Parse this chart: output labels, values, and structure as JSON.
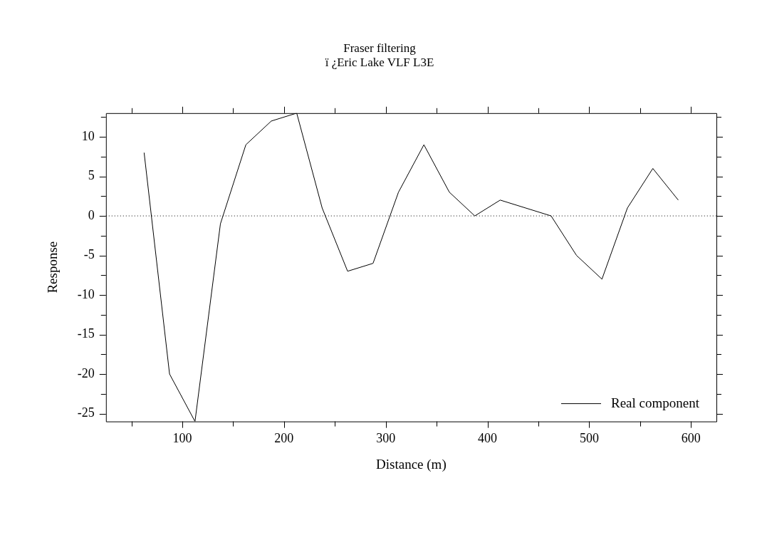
{
  "chart_data": {
    "type": "line",
    "title": "Fraser filtering",
    "subtitle": "ï ¿Eric Lake VLF L3E",
    "xlabel": "Distance (m)",
    "ylabel": "Response",
    "x": [
      62.5,
      87.5,
      112.5,
      137.5,
      162.5,
      187.5,
      212.5,
      237.5,
      262.5,
      287.5,
      312.5,
      337.5,
      362.5,
      387.5,
      412.5,
      437.5,
      462.5,
      487.5,
      512.5,
      537.5,
      562.5,
      587.5
    ],
    "series": [
      {
        "name": "Real component",
        "color": "#000000",
        "values": [
          8,
          -20,
          -26,
          -1,
          9,
          12,
          13,
          1,
          -7,
          -6,
          3,
          9,
          3,
          0,
          2,
          1,
          0,
          -5,
          -8,
          1,
          6,
          2
        ]
      }
    ],
    "xlim": [
      25,
      625
    ],
    "xticks": [
      {
        "value": 50,
        "label": null
      },
      100,
      {
        "value": 150,
        "label": null
      },
      200,
      {
        "value": 250,
        "label": null
      },
      300,
      {
        "value": 350,
        "label": null
      },
      400,
      {
        "value": 450,
        "label": null
      },
      500,
      {
        "value": 550,
        "label": null
      },
      600
    ],
    "ylim": [
      -26,
      13
    ],
    "yticks": [
      -25,
      {
        "value": -22.5,
        "label": null
      },
      -20,
      {
        "value": -17.5,
        "label": null
      },
      -15,
      {
        "value": -12.5,
        "label": null
      },
      -10,
      {
        "value": -7.5,
        "label": null
      },
      -5,
      {
        "value": -2.5,
        "label": null
      },
      0,
      {
        "value": 2.5,
        "label": null
      },
      5,
      {
        "value": 7.5,
        "label": null
      },
      10,
      {
        "value": 12.5,
        "label": null
      }
    ],
    "ref_lines": [
      {
        "axis": "y",
        "value": 0,
        "color": "#000000",
        "line_style": "dotted"
      }
    ],
    "legend": "bottom right",
    "grid": false,
    "marker": "none",
    "line_style": "solid"
  }
}
